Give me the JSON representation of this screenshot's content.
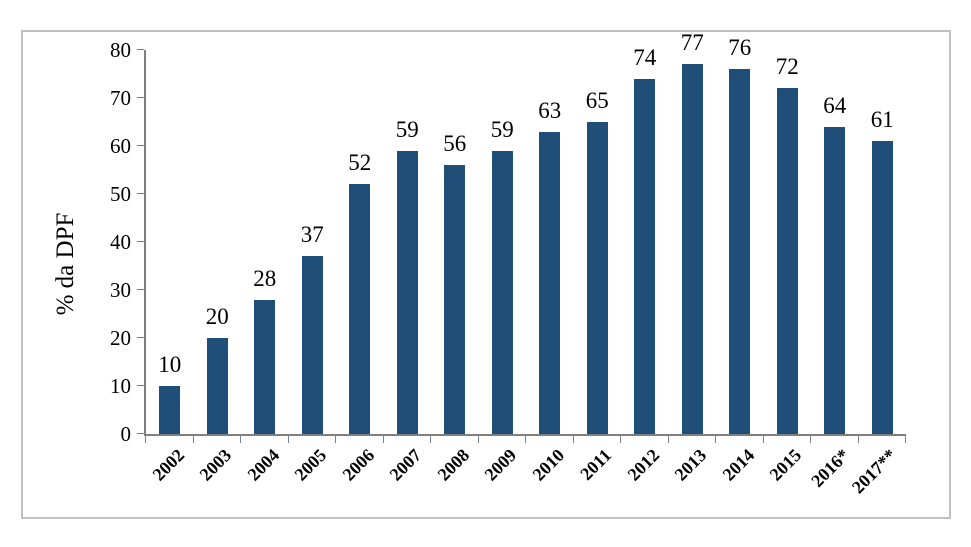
{
  "chart_data": {
    "type": "bar",
    "title": "",
    "xlabel": "",
    "ylabel": "% da DPF",
    "categories": [
      "2002",
      "2003",
      "2004",
      "2005",
      "2006",
      "2007",
      "2008",
      "2009",
      "2010",
      "2011",
      "2012",
      "2013",
      "2014",
      "2015",
      "2016*",
      "2017**"
    ],
    "values": [
      10,
      20,
      28,
      37,
      52,
      59,
      56,
      59,
      63,
      65,
      74,
      77,
      76,
      72,
      64,
      61
    ],
    "data_labels": [
      "10",
      "20",
      "28",
      "37",
      "52",
      "59",
      "56",
      "59",
      "63",
      "65",
      "74",
      "77",
      "76",
      "72",
      "64",
      "61"
    ],
    "ylim": [
      0,
      80
    ],
    "yticks": [
      0,
      10,
      20,
      30,
      40,
      50,
      60,
      70,
      80
    ],
    "grid": "off",
    "legend": "none",
    "bar_color": "#1F4E79",
    "axis_color": "#7F7F7F",
    "frame_border_color": "#BFBFBF",
    "text_color": "#000000"
  }
}
